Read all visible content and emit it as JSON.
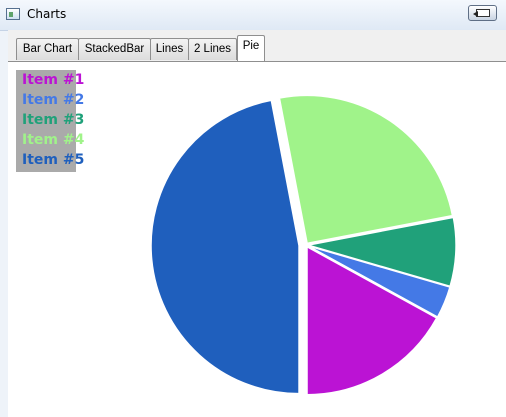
{
  "window": {
    "title": "Charts"
  },
  "tabs": [
    {
      "label": "Bar Chart",
      "active": false
    },
    {
      "label": "StackedBar",
      "active": false
    },
    {
      "label": "Lines",
      "active": false
    },
    {
      "label": "2 Lines",
      "active": false
    },
    {
      "label": "Pie",
      "active": true
    }
  ],
  "chart_data": {
    "type": "pie",
    "title": "",
    "legend_position": "top-left",
    "slices": [
      {
        "label": "Item #1",
        "value": 17,
        "color": "#bb13d4"
      },
      {
        "label": "Item #2",
        "value": 3.5,
        "color": "#4479e6"
      },
      {
        "label": "Item #3",
        "value": 7.5,
        "color": "#20a17a"
      },
      {
        "label": "Item #4",
        "value": 25,
        "color": "#a0f38a"
      },
      {
        "label": "Item #5",
        "value": 47,
        "color": "#1f5fbd"
      }
    ]
  },
  "icons": {
    "app": "window-app-icon",
    "restore": "restore-arrow-icon"
  }
}
